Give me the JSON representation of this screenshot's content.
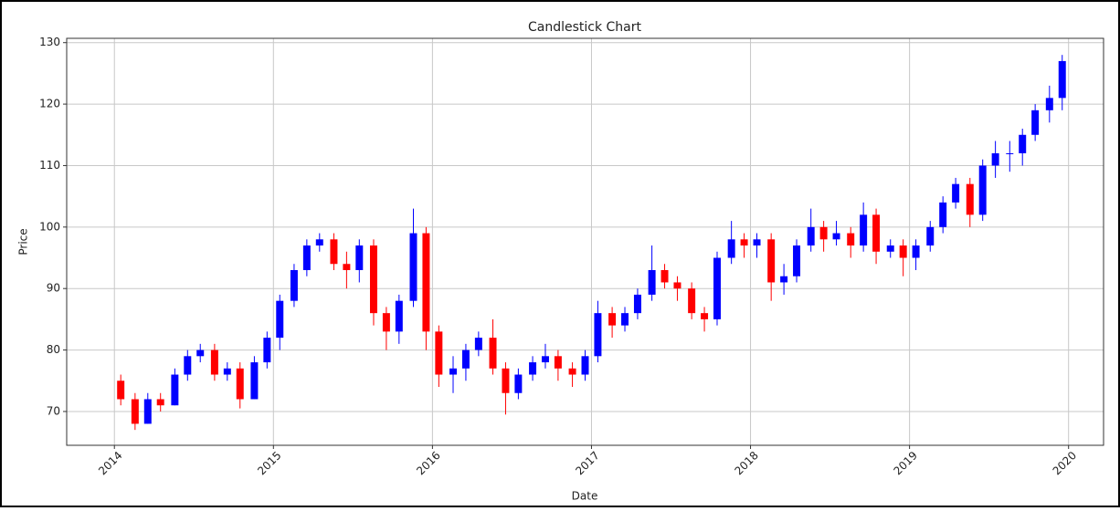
{
  "chart_data": {
    "type": "candlestick",
    "title": "Candlestick Chart",
    "x_label": "Date",
    "y_label": "Price",
    "x": [
      2014.04,
      2014.13,
      2014.21,
      2014.29,
      2014.38,
      2014.46,
      2014.54,
      2014.63,
      2014.71,
      2014.79,
      2014.88,
      2014.96,
      2015.04,
      2015.13,
      2015.21,
      2015.29,
      2015.38,
      2015.46,
      2015.54,
      2015.63,
      2015.71,
      2015.79,
      2015.88,
      2015.96,
      2016.04,
      2016.13,
      2016.21,
      2016.29,
      2016.38,
      2016.46,
      2016.54,
      2016.63,
      2016.71,
      2016.79,
      2016.88,
      2016.96,
      2017.04,
      2017.13,
      2017.21,
      2017.29,
      2017.38,
      2017.46,
      2017.54,
      2017.63,
      2017.71,
      2017.79,
      2017.88,
      2017.96,
      2018.04,
      2018.13,
      2018.21,
      2018.29,
      2018.38,
      2018.46,
      2018.54,
      2018.63,
      2018.71,
      2018.79,
      2018.88,
      2018.96,
      2019.04,
      2019.13,
      2019.21,
      2019.29,
      2019.38,
      2019.46,
      2019.54,
      2019.63,
      2019.71,
      2019.79,
      2019.88,
      2019.96
    ],
    "open": [
      75,
      72,
      68,
      72,
      71,
      76,
      79,
      80,
      76,
      77,
      72,
      78,
      82,
      88,
      93,
      97,
      98,
      94,
      93,
      97,
      86,
      83,
      88,
      99,
      83,
      76,
      77,
      80,
      82,
      77,
      73,
      76,
      78,
      79,
      77,
      76,
      79,
      86,
      84,
      86,
      89,
      93,
      91,
      90,
      86,
      85,
      95,
      98,
      97,
      98,
      91,
      92,
      97,
      100,
      98,
      99,
      97,
      102,
      96,
      97,
      95,
      97,
      100,
      104,
      107,
      102,
      110,
      112,
      112,
      115,
      119,
      121
    ],
    "high": [
      76,
      73,
      73,
      73,
      77,
      80,
      81,
      81,
      78,
      78,
      79,
      83,
      89,
      94,
      98,
      99,
      99,
      96,
      98,
      98,
      87,
      89,
      103,
      100,
      84,
      79,
      81,
      83,
      85,
      78,
      77,
      79,
      81,
      80,
      78,
      80,
      88,
      87,
      87,
      90,
      97,
      94,
      92,
      91,
      87,
      96,
      101,
      99,
      99,
      99,
      94,
      98,
      103,
      101,
      101,
      100,
      104,
      103,
      98,
      98,
      98,
      101,
      105,
      108,
      108,
      111,
      114,
      114,
      116,
      120,
      123,
      128
    ],
    "low": [
      71,
      67,
      68,
      70,
      71,
      75,
      78,
      75,
      75,
      70.5,
      72,
      77,
      80,
      87,
      92,
      96,
      93,
      90,
      91,
      84,
      80,
      81,
      87,
      80,
      74,
      73,
      75,
      79,
      76,
      69.5,
      72,
      75,
      77,
      75,
      74,
      75,
      78,
      82,
      83,
      85,
      88,
      90,
      88,
      85,
      83,
      84,
      94,
      95,
      95,
      88,
      89,
      91,
      96,
      96,
      97,
      95,
      96,
      94,
      95,
      92,
      93,
      96,
      99,
      103,
      100,
      101,
      108,
      109,
      110,
      114,
      117,
      119
    ],
    "close": [
      72,
      68,
      72,
      71,
      76,
      79,
      80,
      76,
      77,
      72,
      78,
      82,
      88,
      93,
      97,
      98,
      94,
      93,
      97,
      86,
      83,
      88,
      99,
      83,
      76,
      77,
      80,
      82,
      77,
      73,
      76,
      78,
      79,
      77,
      76,
      79,
      86,
      84,
      86,
      89,
      93,
      91,
      90,
      86,
      85,
      95,
      98,
      97,
      98,
      91,
      92,
      97,
      100,
      98,
      99,
      97,
      102,
      96,
      97,
      95,
      97,
      100,
      104,
      107,
      102,
      110,
      112,
      112,
      115,
      119,
      121,
      127
    ],
    "up_color": "#0000ff",
    "down_color": "#ff0000",
    "xlim": [
      2013.7,
      2020.22
    ],
    "xticks": [
      2014,
      2015,
      2016,
      2017,
      2018,
      2019,
      2020
    ],
    "ylim": [
      64.5,
      130.7
    ],
    "yticks": [
      70,
      80,
      90,
      100,
      110,
      120,
      130
    ],
    "grid": true
  }
}
